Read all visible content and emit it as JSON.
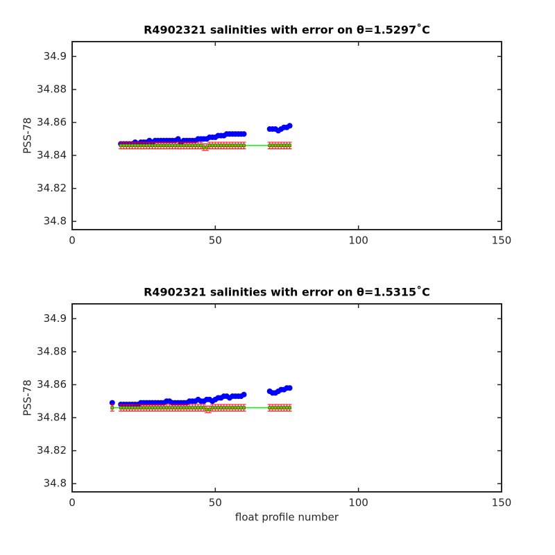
{
  "chart_data": [
    {
      "type": "errorbar",
      "title": "R4902321 salinities with error on θ=1.5297˚C",
      "y_label": "PSS-78",
      "xlim": [
        0,
        150
      ],
      "xticks": [
        0,
        50,
        100,
        150
      ],
      "ylim": [
        34.795,
        34.909
      ],
      "yticks": [
        34.8,
        34.82,
        34.84,
        34.86,
        34.88,
        34.9
      ],
      "x": [
        17,
        18,
        19,
        20,
        21,
        22,
        23,
        24,
        25,
        26,
        27,
        28,
        29,
        30,
        31,
        32,
        33,
        34,
        35,
        36,
        37,
        38,
        39,
        40,
        41,
        42,
        43,
        44,
        45,
        46,
        47,
        48,
        49,
        50,
        51,
        52,
        53,
        54,
        55,
        56,
        57,
        58,
        59,
        60,
        69,
        70,
        71,
        72,
        73,
        74,
        75,
        76
      ],
      "series": [
        {
          "color": "#0000ff",
          "values": [
            34.847,
            34.847,
            34.847,
            34.847,
            34.847,
            34.848,
            34.847,
            34.848,
            34.848,
            34.848,
            34.849,
            34.848,
            34.849,
            34.849,
            34.849,
            34.849,
            34.849,
            34.849,
            34.849,
            34.849,
            34.85,
            34.848,
            34.849,
            34.849,
            34.849,
            34.849,
            34.849,
            34.85,
            34.85,
            34.85,
            34.85,
            34.851,
            34.851,
            34.851,
            34.852,
            34.852,
            34.852,
            34.853,
            34.853,
            34.853,
            34.853,
            34.853,
            34.853,
            34.853,
            34.856,
            34.856,
            34.856,
            34.855,
            34.856,
            34.857,
            34.857,
            34.858
          ]
        },
        {
          "color": "#ff0000",
          "line_color": "#00ff00",
          "error": 0.002,
          "values": [
            34.846,
            34.846,
            34.846,
            34.846,
            34.846,
            34.846,
            34.846,
            34.846,
            34.846,
            34.846,
            34.846,
            34.846,
            34.846,
            34.846,
            34.846,
            34.846,
            34.846,
            34.846,
            34.846,
            34.846,
            34.846,
            34.846,
            34.846,
            34.846,
            34.846,
            34.846,
            34.846,
            34.846,
            34.846,
            34.845,
            34.845,
            34.846,
            34.846,
            34.846,
            34.846,
            34.846,
            34.846,
            34.846,
            34.846,
            34.846,
            34.846,
            34.846,
            34.846,
            34.846,
            34.846,
            34.846,
            34.846,
            34.846,
            34.846,
            34.846,
            34.846,
            34.846
          ]
        }
      ]
    },
    {
      "type": "errorbar",
      "title": "R4902321 salinities with error on θ=1.5315˚C",
      "x_label": "float profile number",
      "y_label": "PSS-78",
      "xlim": [
        0,
        150
      ],
      "xticks": [
        0,
        50,
        100,
        150
      ],
      "ylim": [
        34.795,
        34.909
      ],
      "yticks": [
        34.8,
        34.82,
        34.84,
        34.86,
        34.88,
        34.9
      ],
      "x": [
        14,
        17,
        18,
        19,
        20,
        21,
        22,
        23,
        24,
        25,
        26,
        27,
        28,
        29,
        30,
        31,
        32,
        33,
        34,
        35,
        36,
        37,
        38,
        39,
        40,
        41,
        42,
        43,
        44,
        45,
        46,
        47,
        48,
        49,
        50,
        51,
        52,
        53,
        54,
        55,
        56,
        57,
        58,
        59,
        60,
        69,
        70,
        71,
        72,
        73,
        74,
        75,
        76
      ],
      "series": [
        {
          "color": "#0000ff",
          "values": [
            34.849,
            34.848,
            34.848,
            34.848,
            34.848,
            34.848,
            34.848,
            34.848,
            34.849,
            34.849,
            34.849,
            34.849,
            34.849,
            34.849,
            34.849,
            34.849,
            34.849,
            34.85,
            34.85,
            34.849,
            34.849,
            34.849,
            34.849,
            34.849,
            34.849,
            34.85,
            34.85,
            34.85,
            34.851,
            34.85,
            34.85,
            34.851,
            34.851,
            34.85,
            34.851,
            34.852,
            34.852,
            34.853,
            34.853,
            34.852,
            34.853,
            34.853,
            34.853,
            34.853,
            34.854,
            34.856,
            34.855,
            34.855,
            34.856,
            34.857,
            34.857,
            34.858,
            34.858
          ]
        },
        {
          "color": "#ff0000",
          "line_color": "#00ff00",
          "error": 0.002,
          "values": [
            34.846,
            34.846,
            34.846,
            34.846,
            34.846,
            34.846,
            34.846,
            34.846,
            34.846,
            34.846,
            34.846,
            34.846,
            34.846,
            34.846,
            34.846,
            34.846,
            34.846,
            34.846,
            34.846,
            34.846,
            34.846,
            34.846,
            34.846,
            34.846,
            34.846,
            34.846,
            34.846,
            34.846,
            34.846,
            34.846,
            34.846,
            34.845,
            34.845,
            34.846,
            34.846,
            34.846,
            34.846,
            34.846,
            34.846,
            34.846,
            34.846,
            34.846,
            34.846,
            34.846,
            34.846,
            34.846,
            34.846,
            34.846,
            34.846,
            34.846,
            34.846,
            34.846,
            34.846
          ]
        }
      ]
    }
  ]
}
